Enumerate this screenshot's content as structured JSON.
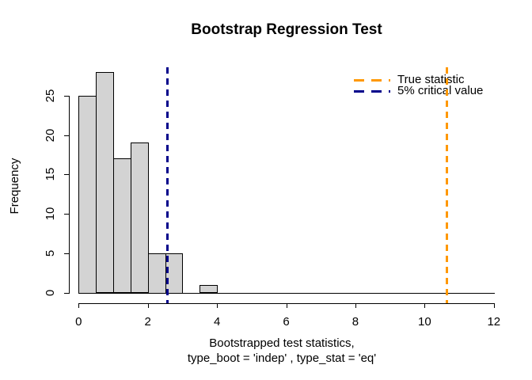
{
  "chart_data": {
    "type": "bar",
    "subtype": "histogram",
    "title": "Bootstrap Regression Test",
    "xlabel_line1": "Bootstrapped test statistics,",
    "xlabel_line2": "type_boot = 'indep' , type_stat = 'eq'",
    "ylabel": "Frequency",
    "xlim": [
      0,
      12
    ],
    "ylim": [
      0,
      28
    ],
    "x_ticks": [
      0,
      2,
      4,
      6,
      8,
      10,
      12
    ],
    "y_ticks": [
      0,
      5,
      10,
      15,
      20,
      25
    ],
    "bins": {
      "start": 0,
      "width": 0.5,
      "counts": [
        25,
        28,
        17,
        19,
        5,
        5,
        0,
        1
      ]
    },
    "total_observations": 100,
    "bar_fill": "#d3d3d3",
    "bar_border": "#000000",
    "grid": false,
    "legend_position": "top-right",
    "vlines": [
      {
        "id": "true-statistic",
        "x": 10.64,
        "color": "#ff9800",
        "style": "dashed",
        "label": "True statistic"
      },
      {
        "id": "critical-value-5pct",
        "x": 2.57,
        "color": "#00008b",
        "style": "dashed",
        "label": "5% critical value"
      }
    ],
    "legend": {
      "items": [
        {
          "label": "True statistic",
          "color": "#ff9800",
          "line_style": "dashed"
        },
        {
          "label": "5% critical value",
          "color": "#00008b",
          "line_style": "dashed"
        }
      ]
    }
  }
}
